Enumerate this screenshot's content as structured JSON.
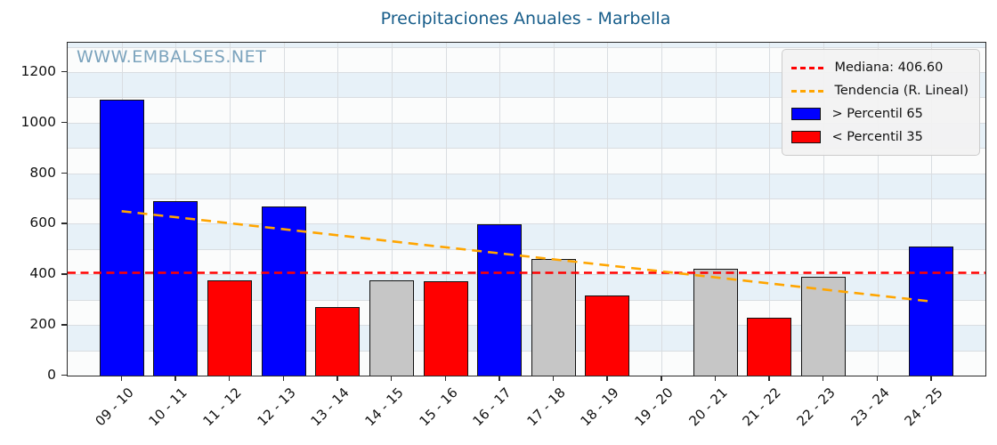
{
  "chart_data": {
    "type": "bar",
    "title": "Precipitaciones Anuales - Marbella",
    "watermark": "WWW.EMBALSES.NET",
    "categories": [
      "09 - 10",
      "10 - 11",
      "11 - 12",
      "12 - 13",
      "13 - 14",
      "14 - 15",
      "15 - 16",
      "16 - 17",
      "17 - 18",
      "18 - 19",
      "19 - 20",
      "20 - 21",
      "21 - 22",
      "22 - 23",
      "23 - 24",
      "24 - 25"
    ],
    "values": [
      1090,
      690,
      375,
      668,
      272,
      377,
      374,
      598,
      460,
      318,
      null,
      424,
      230,
      392,
      null,
      510
    ],
    "bar_classes": [
      "above_p65",
      "above_p65",
      "below_p35",
      "above_p65",
      "below_p35",
      "mid",
      "below_p35",
      "above_p65",
      "mid",
      "below_p35",
      null,
      "mid",
      "below_p35",
      "mid",
      null,
      "above_p65"
    ],
    "median": {
      "value": 406.6,
      "label": "Mediana: 406.60"
    },
    "trend": {
      "label": "Tendencia (R. Lineal)",
      "start_value": 650,
      "end_value": 293
    },
    "legend_items": [
      {
        "label": "Mediana: 406.60",
        "sample": "dashed-line",
        "color": "#ff0000"
      },
      {
        "label": "Tendencia (R. Lineal)",
        "sample": "dashed-line",
        "color": "#ffa500"
      },
      {
        "label": "> Percentil 65",
        "sample": "rect",
        "color": "#0000ff"
      },
      {
        "label": "< Percentil 35",
        "sample": "rect",
        "color": "#ff0000"
      }
    ],
    "yticks": [
      0,
      200,
      400,
      600,
      800,
      1000,
      1200
    ],
    "ylim": [
      0,
      1316
    ],
    "xlabel": "",
    "ylabel": "",
    "grid": true,
    "legend_position": "upper right",
    "colors": {
      "above_p65": "#0000ff",
      "below_p35": "#ff0000",
      "mid": "#c6c6c6",
      "median_line": "#ff0000",
      "trend_line": "#ffa500",
      "title": "#175d8a",
      "watermark": "#7ba3bd",
      "stripe_blue": "#e7f1f8",
      "stripe_white": "#fbfcfc",
      "gridline": "#d9dde1"
    }
  }
}
